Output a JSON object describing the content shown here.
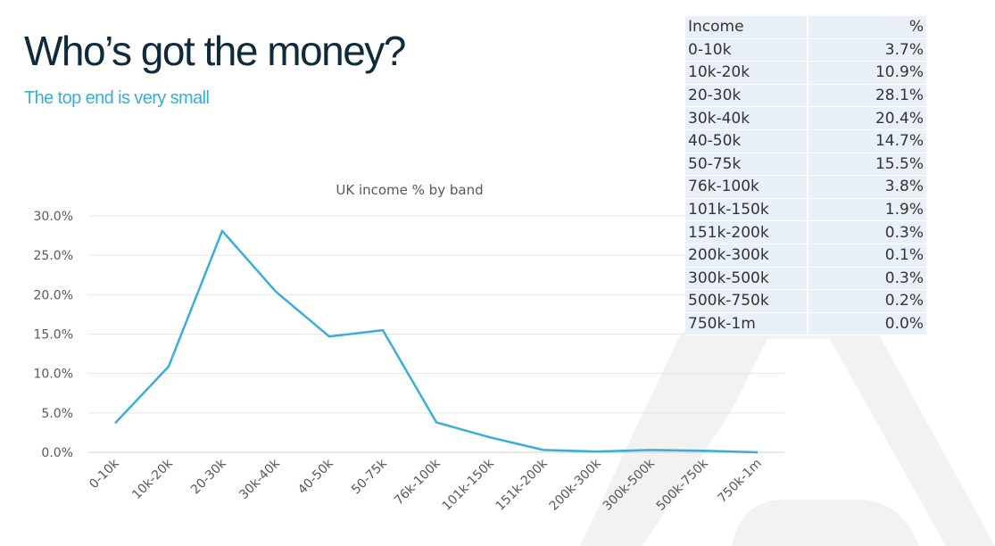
{
  "slide": {
    "title": "Who’s got the money?",
    "subtitle": "The top end is very small"
  },
  "colors": {
    "title": "#0f2a3a",
    "subtitle": "#3aaed8",
    "line": "#3aaed8",
    "table_bg": "#e9f0f8",
    "bg_shape": "#f2f2f2"
  },
  "table": {
    "headers": [
      "Income",
      "%"
    ],
    "rows": [
      [
        "0-10k",
        "3.7%"
      ],
      [
        "10k-20k",
        "10.9%"
      ],
      [
        "20-30k",
        "28.1%"
      ],
      [
        "30k-40k",
        "20.4%"
      ],
      [
        "40-50k",
        "14.7%"
      ],
      [
        "50-75k",
        "15.5%"
      ],
      [
        "76k-100k",
        "3.8%"
      ],
      [
        "101k-150k",
        "1.9%"
      ],
      [
        "151k-200k",
        "0.3%"
      ],
      [
        "200k-300k",
        "0.1%"
      ],
      [
        "300k-500k",
        "0.3%"
      ],
      [
        "500k-750k",
        "0.2%"
      ],
      [
        "750k-1m",
        "0.0%"
      ]
    ]
  },
  "chart_data": {
    "type": "line",
    "title": "UK income % by band",
    "xlabel": "",
    "ylabel": "",
    "categories": [
      "0-10k",
      "10k-20k",
      "20-30k",
      "30k-40k",
      "40-50k",
      "50-75k",
      "76k-100k",
      "101k-150k",
      "151k-200k",
      "200k-300k",
      "300k-500k",
      "500k-750k",
      "750k-1m"
    ],
    "values": [
      3.7,
      10.9,
      28.1,
      20.4,
      14.7,
      15.5,
      3.8,
      1.9,
      0.3,
      0.1,
      0.3,
      0.2,
      0.0
    ],
    "ylim": [
      0,
      30
    ],
    "yticks": [
      0,
      5,
      10,
      15,
      20,
      25,
      30
    ],
    "ytick_labels": [
      "0.0%",
      "5.0%",
      "10.0%",
      "15.0%",
      "20.0%",
      "25.0%",
      "30.0%"
    ],
    "grid": true,
    "legend": "none"
  }
}
